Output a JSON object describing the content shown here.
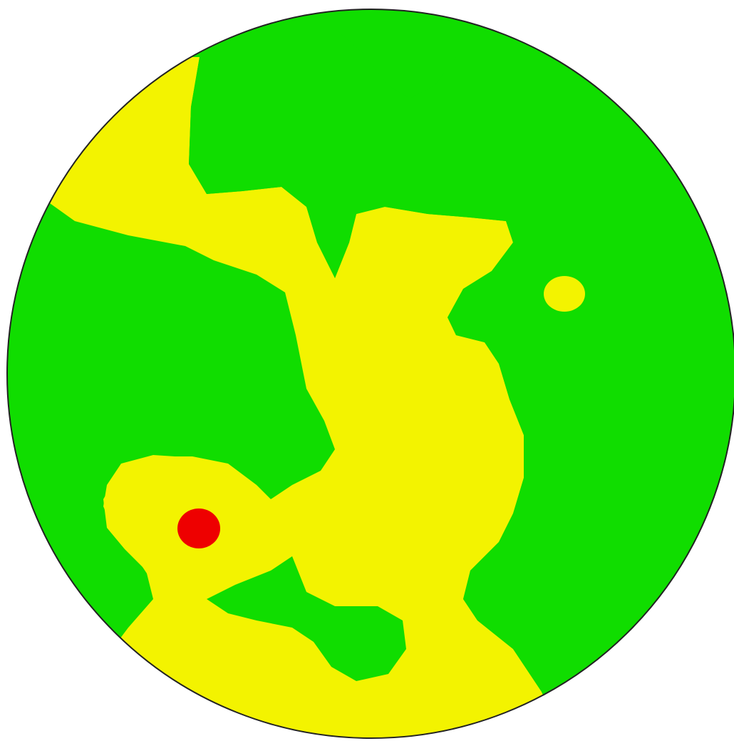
{
  "map": {
    "kind": "circular-zone-map",
    "legend": [],
    "zones": [
      {
        "name": "green-zone",
        "color": "#10dd00"
      },
      {
        "name": "yellow-zone",
        "color": "#f3f300"
      },
      {
        "name": "red-zone",
        "color": "#ee0000"
      }
    ],
    "outline_color": "#222222",
    "background": "#ffffff"
  }
}
